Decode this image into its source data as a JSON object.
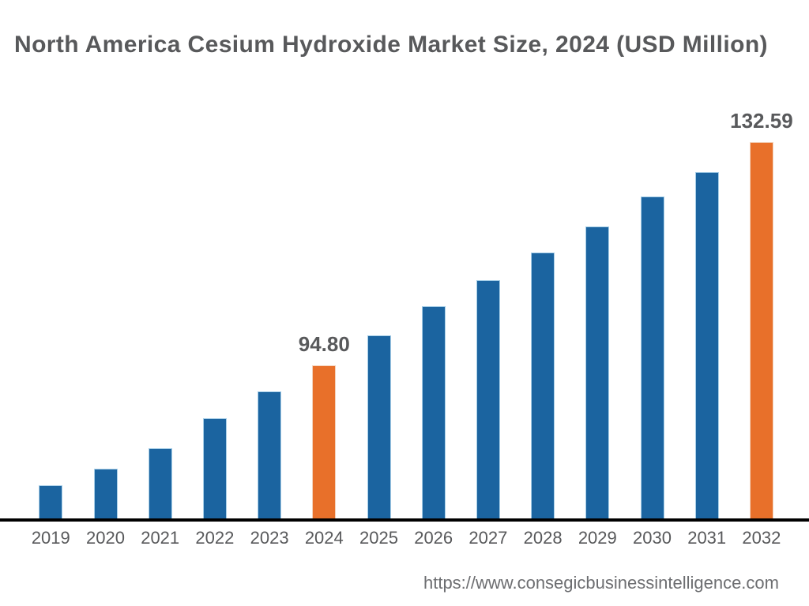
{
  "page": {
    "title": "North America Cesium Hydroxide Market Size, 2024 (USD Million)",
    "footer_url": "https://www.consegicbusinessintelligence.com"
  },
  "chart_data": {
    "type": "bar",
    "title": "North America Cesium Hydroxide Market Size, 2024 (USD Million)",
    "unit": "USD Million",
    "categories": [
      "2019",
      "2020",
      "2021",
      "2022",
      "2023",
      "2024",
      "2025",
      "2026",
      "2027",
      "2028",
      "2029",
      "2030",
      "2031",
      "2032"
    ],
    "values": [
      74.5,
      77.3,
      80.8,
      85.8,
      90.4,
      94.8,
      99.9,
      104.8,
      109.2,
      113.9,
      118.3,
      123.4,
      127.5,
      132.59
    ],
    "labeled_points": [
      {
        "category": "2024",
        "label": "94.80",
        "value": 94.8
      },
      {
        "category": "2032",
        "label": "132.59",
        "value": 132.59
      }
    ],
    "highlighted_categories": [
      "2024",
      "2032"
    ],
    "colors": {
      "bar": "#1b64a0",
      "bar_edge": "#a8cfe8",
      "highlight": "#e8702a",
      "highlight_edge": "#f3d3bd",
      "axis_line": "#000000",
      "text": "#58595b",
      "footer_text": "#6d6e71"
    },
    "y_axis": {
      "visible": false,
      "baseline_value": 68.9,
      "top_value": 140
    },
    "x_axis": {
      "visible": true
    },
    "grid": false,
    "legend": false
  }
}
